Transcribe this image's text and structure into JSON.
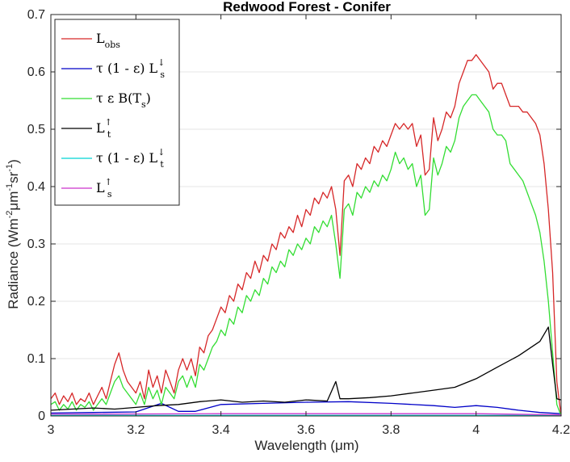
{
  "chart_data": {
    "type": "line",
    "title": "Redwood Forest - Conifer",
    "xlabel": "Wavelength (μm)",
    "ylabel_parts": {
      "main": "Radiance (Wm",
      "e1": "-2",
      "mid": "μm",
      "e2": "-1",
      "mid2": "sr",
      "e3": "-1",
      "end": ")"
    },
    "xlim": [
      3,
      4.2
    ],
    "ylim": [
      0,
      0.7
    ],
    "xticks": [
      "3",
      "3.2",
      "3.4",
      "3.6",
      "3.8",
      "4",
      "4.2"
    ],
    "yticks": [
      "0",
      "0.1",
      "0.2",
      "0.3",
      "0.4",
      "0.5",
      "0.6",
      "0.7"
    ],
    "grid": "y-only",
    "legend_position": "top-left",
    "series": [
      {
        "name": "L_obs",
        "legend": {
          "base": "L",
          "sub": "obs",
          "sup": ""
        },
        "color": "#d62728",
        "x": [
          3.0,
          3.01,
          3.02,
          3.03,
          3.04,
          3.05,
          3.06,
          3.07,
          3.08,
          3.09,
          3.1,
          3.11,
          3.12,
          3.13,
          3.14,
          3.15,
          3.16,
          3.17,
          3.18,
          3.19,
          3.2,
          3.21,
          3.22,
          3.23,
          3.24,
          3.25,
          3.26,
          3.27,
          3.28,
          3.29,
          3.3,
          3.31,
          3.32,
          3.33,
          3.34,
          3.35,
          3.36,
          3.37,
          3.38,
          3.39,
          3.4,
          3.41,
          3.42,
          3.43,
          3.44,
          3.45,
          3.46,
          3.47,
          3.48,
          3.49,
          3.5,
          3.51,
          3.52,
          3.53,
          3.54,
          3.55,
          3.56,
          3.57,
          3.58,
          3.59,
          3.6,
          3.61,
          3.62,
          3.63,
          3.64,
          3.65,
          3.66,
          3.67,
          3.68,
          3.69,
          3.7,
          3.71,
          3.72,
          3.73,
          3.74,
          3.75,
          3.76,
          3.77,
          3.78,
          3.79,
          3.8,
          3.81,
          3.82,
          3.83,
          3.84,
          3.85,
          3.86,
          3.87,
          3.88,
          3.89,
          3.9,
          3.91,
          3.92,
          3.93,
          3.94,
          3.95,
          3.96,
          3.97,
          3.98,
          3.99,
          4.0,
          4.01,
          4.02,
          4.03,
          4.04,
          4.05,
          4.06,
          4.07,
          4.08,
          4.09,
          4.1,
          4.11,
          4.12,
          4.13,
          4.14,
          4.15,
          4.16,
          4.17,
          4.18,
          4.19,
          4.2
        ],
        "y": [
          0.03,
          0.04,
          0.02,
          0.035,
          0.025,
          0.04,
          0.02,
          0.03,
          0.025,
          0.04,
          0.02,
          0.035,
          0.05,
          0.03,
          0.06,
          0.09,
          0.11,
          0.08,
          0.06,
          0.05,
          0.04,
          0.06,
          0.03,
          0.08,
          0.05,
          0.07,
          0.04,
          0.08,
          0.06,
          0.04,
          0.08,
          0.1,
          0.08,
          0.1,
          0.07,
          0.12,
          0.11,
          0.14,
          0.15,
          0.17,
          0.19,
          0.18,
          0.21,
          0.2,
          0.23,
          0.22,
          0.25,
          0.24,
          0.27,
          0.25,
          0.28,
          0.27,
          0.3,
          0.29,
          0.32,
          0.31,
          0.33,
          0.32,
          0.35,
          0.33,
          0.36,
          0.35,
          0.38,
          0.37,
          0.39,
          0.38,
          0.4,
          0.36,
          0.28,
          0.41,
          0.42,
          0.4,
          0.44,
          0.43,
          0.45,
          0.44,
          0.47,
          0.46,
          0.48,
          0.47,
          0.49,
          0.51,
          0.5,
          0.51,
          0.5,
          0.51,
          0.47,
          0.49,
          0.42,
          0.43,
          0.52,
          0.48,
          0.5,
          0.53,
          0.52,
          0.54,
          0.58,
          0.6,
          0.62,
          0.62,
          0.63,
          0.62,
          0.61,
          0.6,
          0.57,
          0.58,
          0.58,
          0.56,
          0.54,
          0.54,
          0.54,
          0.53,
          0.53,
          0.52,
          0.51,
          0.49,
          0.44,
          0.36,
          0.25,
          0.06,
          0.0
        ]
      },
      {
        "name": "τ (1 - ε) L_s↓",
        "legend": {
          "base": "τ (1 - ε) L",
          "sub": "s",
          "sup": "↓"
        },
        "color": "#0000c8",
        "x": [
          3.0,
          3.1,
          3.2,
          3.26,
          3.3,
          3.34,
          3.4,
          3.5,
          3.6,
          3.7,
          3.8,
          3.9,
          3.95,
          4.0,
          4.05,
          4.1,
          4.15,
          4.2
        ],
        "y": [
          0.005,
          0.006,
          0.007,
          0.022,
          0.008,
          0.008,
          0.02,
          0.022,
          0.024,
          0.025,
          0.022,
          0.018,
          0.015,
          0.018,
          0.015,
          0.01,
          0.006,
          0.004
        ]
      },
      {
        "name": "τ ε B(T_s)",
        "legend": {
          "base": "τ ε B(T",
          "sub": "s",
          "sup": "",
          "tail": ")"
        },
        "color": "#33dd33",
        "x": [
          3.0,
          3.01,
          3.02,
          3.03,
          3.04,
          3.05,
          3.06,
          3.07,
          3.08,
          3.09,
          3.1,
          3.11,
          3.12,
          3.13,
          3.14,
          3.15,
          3.16,
          3.17,
          3.18,
          3.19,
          3.2,
          3.21,
          3.22,
          3.23,
          3.24,
          3.25,
          3.26,
          3.27,
          3.28,
          3.29,
          3.3,
          3.31,
          3.32,
          3.33,
          3.34,
          3.35,
          3.36,
          3.37,
          3.38,
          3.39,
          3.4,
          3.41,
          3.42,
          3.43,
          3.44,
          3.45,
          3.46,
          3.47,
          3.48,
          3.49,
          3.5,
          3.51,
          3.52,
          3.53,
          3.54,
          3.55,
          3.56,
          3.57,
          3.58,
          3.59,
          3.6,
          3.61,
          3.62,
          3.63,
          3.64,
          3.65,
          3.66,
          3.67,
          3.68,
          3.69,
          3.7,
          3.71,
          3.72,
          3.73,
          3.74,
          3.75,
          3.76,
          3.77,
          3.78,
          3.79,
          3.8,
          3.81,
          3.82,
          3.83,
          3.84,
          3.85,
          3.86,
          3.87,
          3.88,
          3.89,
          3.9,
          3.91,
          3.92,
          3.93,
          3.94,
          3.95,
          3.96,
          3.97,
          3.98,
          3.99,
          4.0,
          4.01,
          4.02,
          4.03,
          4.04,
          4.05,
          4.06,
          4.07,
          4.08,
          4.09,
          4.1,
          4.11,
          4.12,
          4.13,
          4.14,
          4.15,
          4.16,
          4.17,
          4.18,
          4.19,
          4.2
        ],
        "y": [
          0.02,
          0.025,
          0.01,
          0.02,
          0.012,
          0.025,
          0.01,
          0.02,
          0.015,
          0.025,
          0.01,
          0.02,
          0.03,
          0.02,
          0.04,
          0.06,
          0.07,
          0.05,
          0.04,
          0.03,
          0.02,
          0.04,
          0.02,
          0.05,
          0.03,
          0.045,
          0.02,
          0.05,
          0.04,
          0.03,
          0.06,
          0.07,
          0.05,
          0.07,
          0.05,
          0.09,
          0.08,
          0.1,
          0.12,
          0.13,
          0.15,
          0.14,
          0.17,
          0.16,
          0.19,
          0.18,
          0.21,
          0.2,
          0.22,
          0.21,
          0.24,
          0.23,
          0.26,
          0.25,
          0.27,
          0.26,
          0.29,
          0.28,
          0.3,
          0.29,
          0.31,
          0.3,
          0.33,
          0.32,
          0.34,
          0.33,
          0.35,
          0.3,
          0.24,
          0.36,
          0.37,
          0.35,
          0.39,
          0.38,
          0.4,
          0.39,
          0.41,
          0.4,
          0.42,
          0.41,
          0.43,
          0.46,
          0.44,
          0.45,
          0.43,
          0.44,
          0.4,
          0.42,
          0.35,
          0.36,
          0.45,
          0.42,
          0.44,
          0.47,
          0.46,
          0.48,
          0.52,
          0.54,
          0.55,
          0.56,
          0.56,
          0.55,
          0.54,
          0.53,
          0.5,
          0.49,
          0.49,
          0.48,
          0.44,
          0.43,
          0.42,
          0.41,
          0.39,
          0.37,
          0.35,
          0.32,
          0.27,
          0.2,
          0.11,
          0.02,
          0.0
        ]
      },
      {
        "name": "L_t↑",
        "legend": {
          "base": "L",
          "sub": "t",
          "sup": "↑"
        },
        "color": "#000000",
        "x": [
          3.0,
          3.05,
          3.1,
          3.15,
          3.2,
          3.25,
          3.3,
          3.35,
          3.4,
          3.45,
          3.5,
          3.55,
          3.6,
          3.65,
          3.67,
          3.68,
          3.7,
          3.75,
          3.8,
          3.85,
          3.9,
          3.95,
          4.0,
          4.05,
          4.1,
          4.15,
          4.17,
          4.18,
          4.19,
          4.2
        ],
        "y": [
          0.01,
          0.012,
          0.014,
          0.012,
          0.015,
          0.018,
          0.02,
          0.025,
          0.028,
          0.024,
          0.026,
          0.024,
          0.028,
          0.026,
          0.06,
          0.03,
          0.03,
          0.032,
          0.035,
          0.04,
          0.045,
          0.05,
          0.065,
          0.085,
          0.105,
          0.13,
          0.155,
          0.09,
          0.03,
          0.028
        ]
      },
      {
        "name": "τ (1 - ε) L_t↓",
        "legend": {
          "base": "τ (1 - ε) L",
          "sub": "t",
          "sup": "↓"
        },
        "color": "#00d4d4",
        "x": [
          3.0,
          3.4,
          3.8,
          4.2
        ],
        "y": [
          0.001,
          0.001,
          0.001,
          0.001
        ]
      },
      {
        "name": "L_s↑",
        "legend": {
          "base": "L",
          "sub": "s",
          "sup": "↑"
        },
        "color": "#cc33cc",
        "x": [
          3.0,
          3.4,
          3.8,
          4.0,
          4.2
        ],
        "y": [
          0.003,
          0.004,
          0.004,
          0.004,
          0.002
        ]
      }
    ]
  }
}
